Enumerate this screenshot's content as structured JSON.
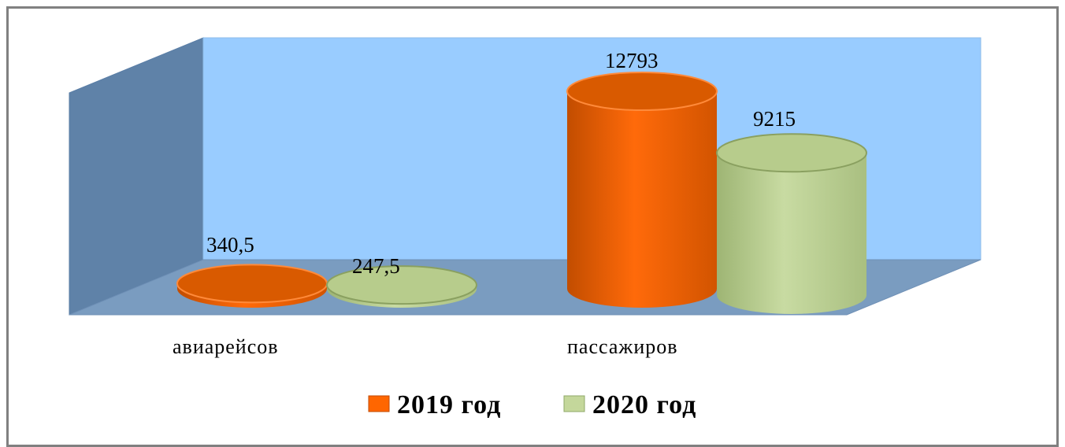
{
  "chart_data": {
    "type": "bar",
    "style": "3d-cylinder",
    "categories": [
      "авиарейсов",
      "пассажиров"
    ],
    "series": [
      {
        "name": "2019 год",
        "color": "#ff6600",
        "values": [
          340.5,
          12793
        ],
        "labels": [
          "340,5",
          "12793"
        ]
      },
      {
        "name": "2020 год",
        "color": "#c4d79b",
        "values": [
          247.5,
          9215
        ],
        "labels": [
          "247,5",
          "9215"
        ]
      }
    ],
    "ylim": [
      0,
      13000
    ],
    "grid": false,
    "legend": "bottom",
    "wall_color": "#99ccff",
    "floor_color": "#7a9cc0",
    "side_wall_color": "#5f82a8"
  }
}
